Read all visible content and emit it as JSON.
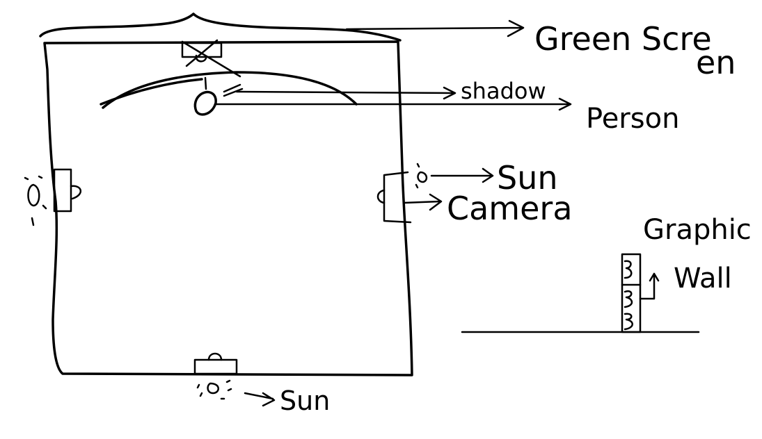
{
  "labels": {
    "green_screen_line1": "Green Scre",
    "green_screen_line2": "en",
    "shadow": "shadow",
    "person": "Person",
    "sun_right": "Sun",
    "camera": "Camera",
    "sun_bottom": "Sun",
    "graphic_line1": "Graphic",
    "graphic_line2": "Wall"
  },
  "colors": {
    "ink": "#000000",
    "background": "#ffffff"
  },
  "icons": [
    "arrow-icon",
    "sun-icon",
    "camera-icon",
    "person-icon",
    "light-stand-icon"
  ]
}
